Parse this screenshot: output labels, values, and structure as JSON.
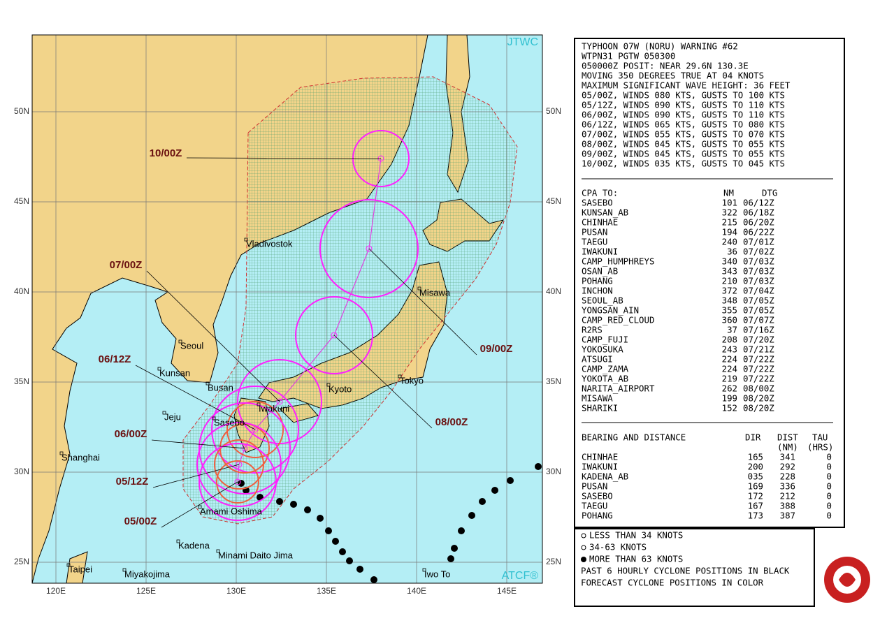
{
  "map": {
    "corner_labels": [
      "JTWC",
      "ATCF®"
    ],
    "lat_labels": [
      "50N",
      "45N",
      "40N",
      "35N",
      "30N",
      "25N"
    ],
    "lon_labels": [
      "120E",
      "125E",
      "130E",
      "135E",
      "140E",
      "145E"
    ],
    "places": [
      "Vladivostok",
      "Seoul",
      "Kunsan",
      "Busan",
      "Jeju",
      "Sasebo",
      "Iwakuni",
      "Kyoto",
      "Tokyo",
      "Misawa",
      "Shanghai",
      "Amami Oshima",
      "Kadena",
      "Minami Daito Jima",
      "Taipei",
      "Miyakojima",
      "Iwo To"
    ],
    "forecast_labels": [
      "10/00Z",
      "09/00Z",
      "08/00Z",
      "07/00Z",
      "06/12Z",
      "06/00Z",
      "05/12Z",
      "05/00Z"
    ]
  },
  "warning": {
    "lines": [
      "TYPHOON 07W (NORU) WARNING #62",
      "WTPN31 PGTW 050300",
      "050000Z POSIT: NEAR 29.6N 130.3E",
      "MOVING 350 DEGREES TRUE AT 04 KNOTS",
      "MAXIMUM SIGNIFICANT WAVE HEIGHT: 36 FEET",
      "05/00Z, WINDS 080 KTS, GUSTS TO 100 KTS",
      "05/12Z, WINDS 090 KTS, GUSTS TO 110 KTS",
      "06/00Z, WINDS 090 KTS, GUSTS TO 110 KTS",
      "06/12Z, WINDS 065 KTS, GUSTS TO 080 KTS",
      "07/00Z, WINDS 055 KTS, GUSTS TO 070 KTS",
      "08/00Z, WINDS 045 KTS, GUSTS TO 055 KTS",
      "09/00Z, WINDS 045 KTS, GUSTS TO 055 KTS",
      "10/00Z, WINDS 035 KTS, GUSTS TO 045 KTS"
    ]
  },
  "cpa": {
    "header": [
      "CPA TO:",
      "NM",
      "DTG"
    ],
    "rows": [
      [
        "SASEBO",
        "101",
        "06/12Z"
      ],
      [
        "KUNSAN_AB",
        "322",
        "06/18Z"
      ],
      [
        "CHINHAE",
        "215",
        "06/20Z"
      ],
      [
        "PUSAN",
        "194",
        "06/22Z"
      ],
      [
        "TAEGU",
        "240",
        "07/01Z"
      ],
      [
        "IWAKUNI",
        "36",
        "07/02Z"
      ],
      [
        "CAMP_HUMPHREYS",
        "340",
        "07/03Z"
      ],
      [
        "OSAN_AB",
        "343",
        "07/03Z"
      ],
      [
        "POHANG",
        "210",
        "07/03Z"
      ],
      [
        "INCHON",
        "372",
        "07/04Z"
      ],
      [
        "SEOUL_AB",
        "348",
        "07/05Z"
      ],
      [
        "YONGSAN_AIN",
        "355",
        "07/05Z"
      ],
      [
        "CAMP_RED_CLOUD",
        "360",
        "07/07Z"
      ],
      [
        "R2RS",
        "37",
        "07/16Z"
      ],
      [
        "CAMP_FUJI",
        "208",
        "07/20Z"
      ],
      [
        "YOKOSUKA",
        "243",
        "07/21Z"
      ],
      [
        "ATSUGI",
        "224",
        "07/22Z"
      ],
      [
        "CAMP_ZAMA",
        "224",
        "07/22Z"
      ],
      [
        "YOKOTA_AB",
        "219",
        "07/22Z"
      ],
      [
        "NARITA_AIRPORT",
        "262",
        "08/00Z"
      ],
      [
        "MISAWA",
        "199",
        "08/20Z"
      ],
      [
        "SHARIKI",
        "152",
        "08/20Z"
      ]
    ]
  },
  "bearing": {
    "header": [
      "BEARING AND DISTANCE",
      "DIR",
      "DIST",
      "TAU"
    ],
    "subheader": [
      "(NM)",
      "(HRS)"
    ],
    "rows": [
      [
        "CHINHAE",
        "165",
        "341",
        "0"
      ],
      [
        "IWAKUNI",
        "200",
        "292",
        "0"
      ],
      [
        "KADENA_AB",
        "035",
        "228",
        "0"
      ],
      [
        "PUSAN",
        "169",
        "336",
        "0"
      ],
      [
        "SASEBO",
        "172",
        "212",
        "0"
      ],
      [
        "TAEGU",
        "167",
        "388",
        "0"
      ],
      [
        "POHANG",
        "173",
        "387",
        "0"
      ]
    ]
  },
  "legend": {
    "lines": [
      "LESS THAN 34 KNOTS",
      "34-63 KNOTS",
      "MORE THAN 63 KNOTS",
      "PAST 6 HOURLY CYCLONE POSITIONS IN BLACK",
      "FORECAST CYCLONE POSITIONS IN COLOR"
    ]
  }
}
